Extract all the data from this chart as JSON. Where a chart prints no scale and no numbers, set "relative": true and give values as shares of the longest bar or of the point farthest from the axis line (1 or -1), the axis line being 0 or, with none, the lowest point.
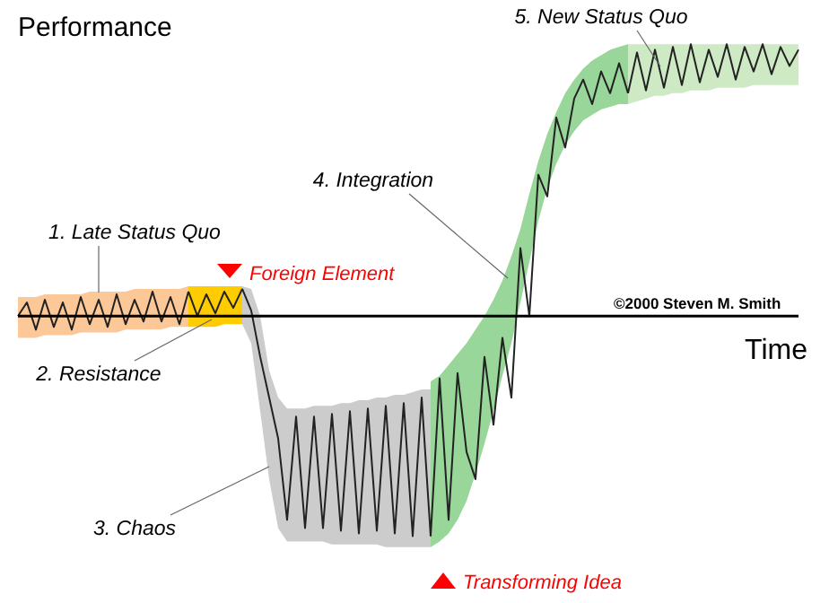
{
  "chart_data": {
    "type": "line",
    "relative": true,
    "xlabel": "Time",
    "ylabel": "Performance",
    "categories": [
      null,
      null,
      null,
      null,
      null,
      null,
      null,
      null,
      null,
      null,
      null,
      null,
      null,
      null,
      null,
      null,
      null,
      null,
      null,
      null,
      null,
      null,
      null,
      null,
      null,
      null,
      null,
      null,
      null,
      null,
      null,
      null,
      null,
      null,
      null,
      null,
      null,
      null,
      null,
      null,
      null,
      null,
      null,
      null,
      null,
      null,
      null,
      null,
      null,
      null,
      null,
      null,
      null,
      null,
      null,
      null,
      null,
      null,
      null,
      null,
      null,
      null,
      null,
      null,
      null,
      null,
      null,
      null,
      null,
      null,
      null,
      null,
      null,
      null,
      null,
      null,
      null,
      null,
      null,
      null,
      null,
      null,
      null,
      null,
      null,
      null,
      null,
      null
    ],
    "series": [
      {
        "name": "1. Late Status Quo",
        "color": "#222222",
        "values": [
          0.0,
          0.05,
          -0.05,
          0.06,
          -0.04,
          0.05,
          -0.05,
          0.07,
          -0.03,
          0.06,
          -0.04,
          0.08,
          -0.03,
          0.06,
          -0.02,
          0.09,
          -0.02,
          0.07,
          -0.03,
          0.09,
          null,
          null,
          null,
          null,
          null,
          null,
          null,
          null,
          null,
          null,
          null,
          null,
          null,
          null,
          null,
          null,
          null,
          null,
          null,
          null,
          null,
          null,
          null,
          null,
          null,
          null,
          null,
          null,
          null,
          null,
          null,
          null,
          null,
          null,
          null,
          null,
          null,
          null,
          null,
          null,
          null,
          null,
          null,
          null,
          null,
          null,
          null,
          null,
          null,
          null,
          null,
          null,
          null,
          null,
          null,
          null,
          null,
          null,
          null,
          null,
          null,
          null,
          null,
          null,
          null,
          null,
          null,
          null
        ],
        "upper": [
          0.07,
          0.07,
          0.07,
          0.08,
          0.08,
          0.08,
          0.08,
          0.08,
          0.09,
          0.09,
          0.09,
          0.09,
          0.09,
          0.1,
          0.1,
          0.1,
          0.1,
          0.1,
          0.1,
          0.11,
          null,
          null,
          null,
          null,
          null,
          null,
          null,
          null,
          null,
          null,
          null,
          null,
          null,
          null,
          null,
          null,
          null,
          null,
          null,
          null,
          null,
          null,
          null,
          null,
          null,
          null,
          null,
          null,
          null,
          null,
          null,
          null,
          null,
          null,
          null,
          null,
          null,
          null,
          null,
          null,
          null,
          null,
          null,
          null,
          null,
          null,
          null,
          null,
          null,
          null,
          null,
          null,
          null,
          null,
          null,
          null,
          null,
          null,
          null,
          null,
          null,
          null,
          null,
          null,
          null,
          null,
          null,
          null
        ],
        "lower": [
          -0.08,
          -0.08,
          -0.08,
          -0.07,
          -0.07,
          -0.07,
          -0.07,
          -0.06,
          -0.06,
          -0.06,
          -0.06,
          -0.06,
          -0.05,
          -0.05,
          -0.05,
          -0.05,
          -0.05,
          -0.04,
          -0.04,
          -0.04,
          null,
          null,
          null,
          null,
          null,
          null,
          null,
          null,
          null,
          null,
          null,
          null,
          null,
          null,
          null,
          null,
          null,
          null,
          null,
          null,
          null,
          null,
          null,
          null,
          null,
          null,
          null,
          null,
          null,
          null,
          null,
          null,
          null,
          null,
          null,
          null,
          null,
          null,
          null,
          null,
          null,
          null,
          null,
          null,
          null,
          null,
          null,
          null,
          null,
          null,
          null,
          null,
          null,
          null,
          null,
          null,
          null,
          null,
          null,
          null,
          null,
          null,
          null,
          null,
          null,
          null,
          null,
          null
        ]
      },
      {
        "name": "2. Resistance",
        "color": "#222222",
        "values": [
          null,
          null,
          null,
          null,
          null,
          null,
          null,
          null,
          null,
          null,
          null,
          null,
          null,
          null,
          null,
          null,
          null,
          null,
          null,
          0.09,
          0.0,
          0.08,
          0.01,
          0.09,
          0.03,
          0.1,
          null,
          null,
          null,
          null,
          null,
          null,
          null,
          null,
          null,
          null,
          null,
          null,
          null,
          null,
          null,
          null,
          null,
          null,
          null,
          null,
          null,
          null,
          null,
          null,
          null,
          null,
          null,
          null,
          null,
          null,
          null,
          null,
          null,
          null,
          null,
          null,
          null,
          null,
          null,
          null,
          null,
          null,
          null,
          null,
          null,
          null,
          null,
          null,
          null,
          null,
          null,
          null,
          null,
          null,
          null,
          null,
          null,
          null,
          null,
          null,
          null,
          null
        ],
        "upper": [
          null,
          null,
          null,
          null,
          null,
          null,
          null,
          null,
          null,
          null,
          null,
          null,
          null,
          null,
          null,
          null,
          null,
          null,
          null,
          0.11,
          0.11,
          0.11,
          0.11,
          0.11,
          0.11,
          0.11,
          null,
          null,
          null,
          null,
          null,
          null,
          null,
          null,
          null,
          null,
          null,
          null,
          null,
          null,
          null,
          null,
          null,
          null,
          null,
          null,
          null,
          null,
          null,
          null,
          null,
          null,
          null,
          null,
          null,
          null,
          null,
          null,
          null,
          null,
          null,
          null,
          null,
          null,
          null,
          null,
          null,
          null,
          null,
          null,
          null,
          null,
          null,
          null,
          null,
          null,
          null,
          null,
          null,
          null,
          null,
          null,
          null,
          null,
          null,
          null,
          null,
          null
        ],
        "lower": [
          null,
          null,
          null,
          null,
          null,
          null,
          null,
          null,
          null,
          null,
          null,
          null,
          null,
          null,
          null,
          null,
          null,
          null,
          null,
          -0.04,
          -0.04,
          -0.04,
          -0.04,
          -0.03,
          -0.03,
          -0.03,
          null,
          null,
          null,
          null,
          null,
          null,
          null,
          null,
          null,
          null,
          null,
          null,
          null,
          null,
          null,
          null,
          null,
          null,
          null,
          null,
          null,
          null,
          null,
          null,
          null,
          null,
          null,
          null,
          null,
          null,
          null,
          null,
          null,
          null,
          null,
          null,
          null,
          null,
          null,
          null,
          null,
          null,
          null,
          null,
          null,
          null,
          null,
          null,
          null,
          null,
          null,
          null,
          null,
          null,
          null,
          null,
          null,
          null,
          null,
          null,
          null,
          null
        ]
      },
      {
        "name": "3. Chaos",
        "color": "#222222",
        "values": [
          null,
          null,
          null,
          null,
          null,
          null,
          null,
          null,
          null,
          null,
          null,
          null,
          null,
          null,
          null,
          null,
          null,
          null,
          null,
          null,
          null,
          null,
          null,
          null,
          null,
          0.1,
          0.02,
          -0.15,
          -0.3,
          -0.45,
          -0.75,
          -0.37,
          -0.78,
          -0.37,
          -0.78,
          -0.36,
          -0.79,
          -0.35,
          -0.8,
          -0.34,
          -0.79,
          -0.33,
          -0.8,
          -0.32,
          -0.81,
          -0.3,
          -0.81,
          null,
          null,
          null,
          null,
          null,
          null,
          null,
          null,
          null,
          null,
          null,
          null,
          null,
          null,
          null,
          null,
          null,
          null,
          null,
          null,
          null,
          null,
          null,
          null,
          null,
          null,
          null,
          null,
          null,
          null,
          null,
          null,
          null,
          null,
          null,
          null,
          null,
          null,
          null,
          null,
          null
        ],
        "upper": [
          null,
          null,
          null,
          null,
          null,
          null,
          null,
          null,
          null,
          null,
          null,
          null,
          null,
          null,
          null,
          null,
          null,
          null,
          null,
          null,
          null,
          null,
          null,
          null,
          null,
          0.11,
          0.1,
          0.0,
          -0.2,
          -0.3,
          -0.34,
          -0.34,
          -0.34,
          -0.33,
          -0.33,
          -0.33,
          -0.32,
          -0.32,
          -0.31,
          -0.31,
          -0.3,
          -0.3,
          -0.29,
          -0.29,
          -0.28,
          -0.27,
          -0.27,
          null,
          null,
          null,
          null,
          null,
          null,
          null,
          null,
          null,
          null,
          null,
          null,
          null,
          null,
          null,
          null,
          null,
          null,
          null,
          null,
          null,
          null,
          null,
          null,
          null,
          null,
          null,
          null,
          null,
          null,
          null,
          null,
          null,
          null,
          null,
          null,
          null,
          null,
          null,
          null,
          null
        ],
        "lower": [
          null,
          null,
          null,
          null,
          null,
          null,
          null,
          null,
          null,
          null,
          null,
          null,
          null,
          null,
          null,
          null,
          null,
          null,
          null,
          null,
          null,
          null,
          null,
          null,
          null,
          -0.03,
          -0.1,
          -0.35,
          -0.6,
          -0.78,
          -0.83,
          -0.83,
          -0.83,
          -0.83,
          -0.83,
          -0.84,
          -0.84,
          -0.84,
          -0.84,
          -0.84,
          -0.84,
          -0.85,
          -0.85,
          -0.85,
          -0.85,
          -0.85,
          -0.85,
          null,
          null,
          null,
          null,
          null,
          null,
          null,
          null,
          null,
          null,
          null,
          null,
          null,
          null,
          null,
          null,
          null,
          null,
          null,
          null,
          null,
          null,
          null,
          null,
          null,
          null,
          null,
          null,
          null,
          null,
          null,
          null,
          null,
          null,
          null,
          null,
          null,
          null,
          null,
          null,
          null
        ]
      },
      {
        "name": "4. Integration",
        "color": "#222222",
        "values": [
          null,
          null,
          null,
          null,
          null,
          null,
          null,
          null,
          null,
          null,
          null,
          null,
          null,
          null,
          null,
          null,
          null,
          null,
          null,
          null,
          null,
          null,
          null,
          null,
          null,
          null,
          null,
          null,
          null,
          null,
          null,
          null,
          null,
          null,
          null,
          null,
          null,
          null,
          null,
          null,
          null,
          null,
          null,
          null,
          null,
          null,
          -0.81,
          -0.23,
          -0.75,
          -0.21,
          -0.5,
          -0.6,
          -0.15,
          -0.4,
          -0.08,
          -0.3,
          0.25,
          0.0,
          0.52,
          0.44,
          0.73,
          0.62,
          0.8,
          0.87,
          0.78,
          0.9,
          0.82,
          0.93,
          0.82,
          null,
          null,
          null,
          null,
          null,
          null,
          null,
          null,
          null,
          null,
          null,
          null,
          null,
          null,
          null,
          null,
          null,
          null,
          null
        ],
        "upper": [
          null,
          null,
          null,
          null,
          null,
          null,
          null,
          null,
          null,
          null,
          null,
          null,
          null,
          null,
          null,
          null,
          null,
          null,
          null,
          null,
          null,
          null,
          null,
          null,
          null,
          null,
          null,
          null,
          null,
          null,
          null,
          null,
          null,
          null,
          null,
          null,
          null,
          null,
          null,
          null,
          null,
          null,
          null,
          null,
          null,
          null,
          -0.24,
          -0.22,
          -0.18,
          -0.14,
          -0.1,
          -0.05,
          0.0,
          0.06,
          0.13,
          0.22,
          0.32,
          0.45,
          0.57,
          0.67,
          0.75,
          0.82,
          0.87,
          0.91,
          0.94,
          0.96,
          0.98,
          0.99,
          1.0,
          null,
          null,
          null,
          null,
          null,
          null,
          null,
          null,
          null,
          null,
          null,
          null,
          null,
          null,
          null,
          null,
          null,
          null,
          null
        ],
        "lower": [
          null,
          null,
          null,
          null,
          null,
          null,
          null,
          null,
          null,
          null,
          null,
          null,
          null,
          null,
          null,
          null,
          null,
          null,
          null,
          null,
          null,
          null,
          null,
          null,
          null,
          null,
          null,
          null,
          null,
          null,
          null,
          null,
          null,
          null,
          null,
          null,
          null,
          null,
          null,
          null,
          null,
          null,
          null,
          null,
          null,
          null,
          -0.85,
          -0.83,
          -0.8,
          -0.75,
          -0.68,
          -0.58,
          -0.47,
          -0.35,
          -0.22,
          -0.1,
          0.05,
          0.2,
          0.35,
          0.47,
          0.56,
          0.63,
          0.68,
          0.72,
          0.74,
          0.76,
          0.77,
          0.78,
          0.78,
          null,
          null,
          null,
          null,
          null,
          null,
          null,
          null,
          null,
          null,
          null,
          null,
          null,
          null,
          null,
          null,
          null,
          null,
          null
        ]
      },
      {
        "name": "5. New Status Quo",
        "color": "#222222",
        "values": [
          null,
          null,
          null,
          null,
          null,
          null,
          null,
          null,
          null,
          null,
          null,
          null,
          null,
          null,
          null,
          null,
          null,
          null,
          null,
          null,
          null,
          null,
          null,
          null,
          null,
          null,
          null,
          null,
          null,
          null,
          null,
          null,
          null,
          null,
          null,
          null,
          null,
          null,
          null,
          null,
          null,
          null,
          null,
          null,
          null,
          null,
          null,
          null,
          null,
          null,
          null,
          null,
          null,
          null,
          null,
          null,
          null,
          null,
          null,
          null,
          null,
          null,
          null,
          null,
          null,
          null,
          null,
          null,
          0.82,
          0.97,
          0.83,
          0.98,
          0.84,
          0.99,
          0.85,
          1.0,
          0.86,
          0.98,
          0.88,
          1.0,
          0.87,
          0.99,
          0.9,
          1.0,
          0.89,
          0.99,
          0.92,
          0.98
        ],
        "upper": [
          null,
          null,
          null,
          null,
          null,
          null,
          null,
          null,
          null,
          null,
          null,
          null,
          null,
          null,
          null,
          null,
          null,
          null,
          null,
          null,
          null,
          null,
          null,
          null,
          null,
          null,
          null,
          null,
          null,
          null,
          null,
          null,
          null,
          null,
          null,
          null,
          null,
          null,
          null,
          null,
          null,
          null,
          null,
          null,
          null,
          null,
          null,
          null,
          null,
          null,
          null,
          null,
          null,
          null,
          null,
          null,
          null,
          null,
          null,
          null,
          null,
          null,
          null,
          null,
          null,
          null,
          null,
          null,
          1.0,
          1.0,
          1.0,
          1.0,
          1.0,
          1.0,
          1.0,
          1.0,
          1.0,
          1.0,
          1.0,
          1.0,
          1.0,
          1.0,
          1.0,
          1.0,
          1.0,
          1.0,
          1.0,
          1.0
        ],
        "lower": [
          null,
          null,
          null,
          null,
          null,
          null,
          null,
          null,
          null,
          null,
          null,
          null,
          null,
          null,
          null,
          null,
          null,
          null,
          null,
          null,
          null,
          null,
          null,
          null,
          null,
          null,
          null,
          null,
          null,
          null,
          null,
          null,
          null,
          null,
          null,
          null,
          null,
          null,
          null,
          null,
          null,
          null,
          null,
          null,
          null,
          null,
          null,
          null,
          null,
          null,
          null,
          null,
          null,
          null,
          null,
          null,
          null,
          null,
          null,
          null,
          null,
          null,
          null,
          null,
          null,
          null,
          null,
          null,
          0.78,
          0.79,
          0.8,
          0.81,
          0.81,
          0.82,
          0.82,
          0.83,
          0.83,
          0.83,
          0.84,
          0.84,
          0.84,
          0.84,
          0.85,
          0.85,
          0.85,
          0.85,
          0.85,
          0.85
        ]
      }
    ],
    "annotations": [
      "Foreign Element",
      "Transforming Idea",
      "©2000 Steven M. Smith"
    ]
  }
}
